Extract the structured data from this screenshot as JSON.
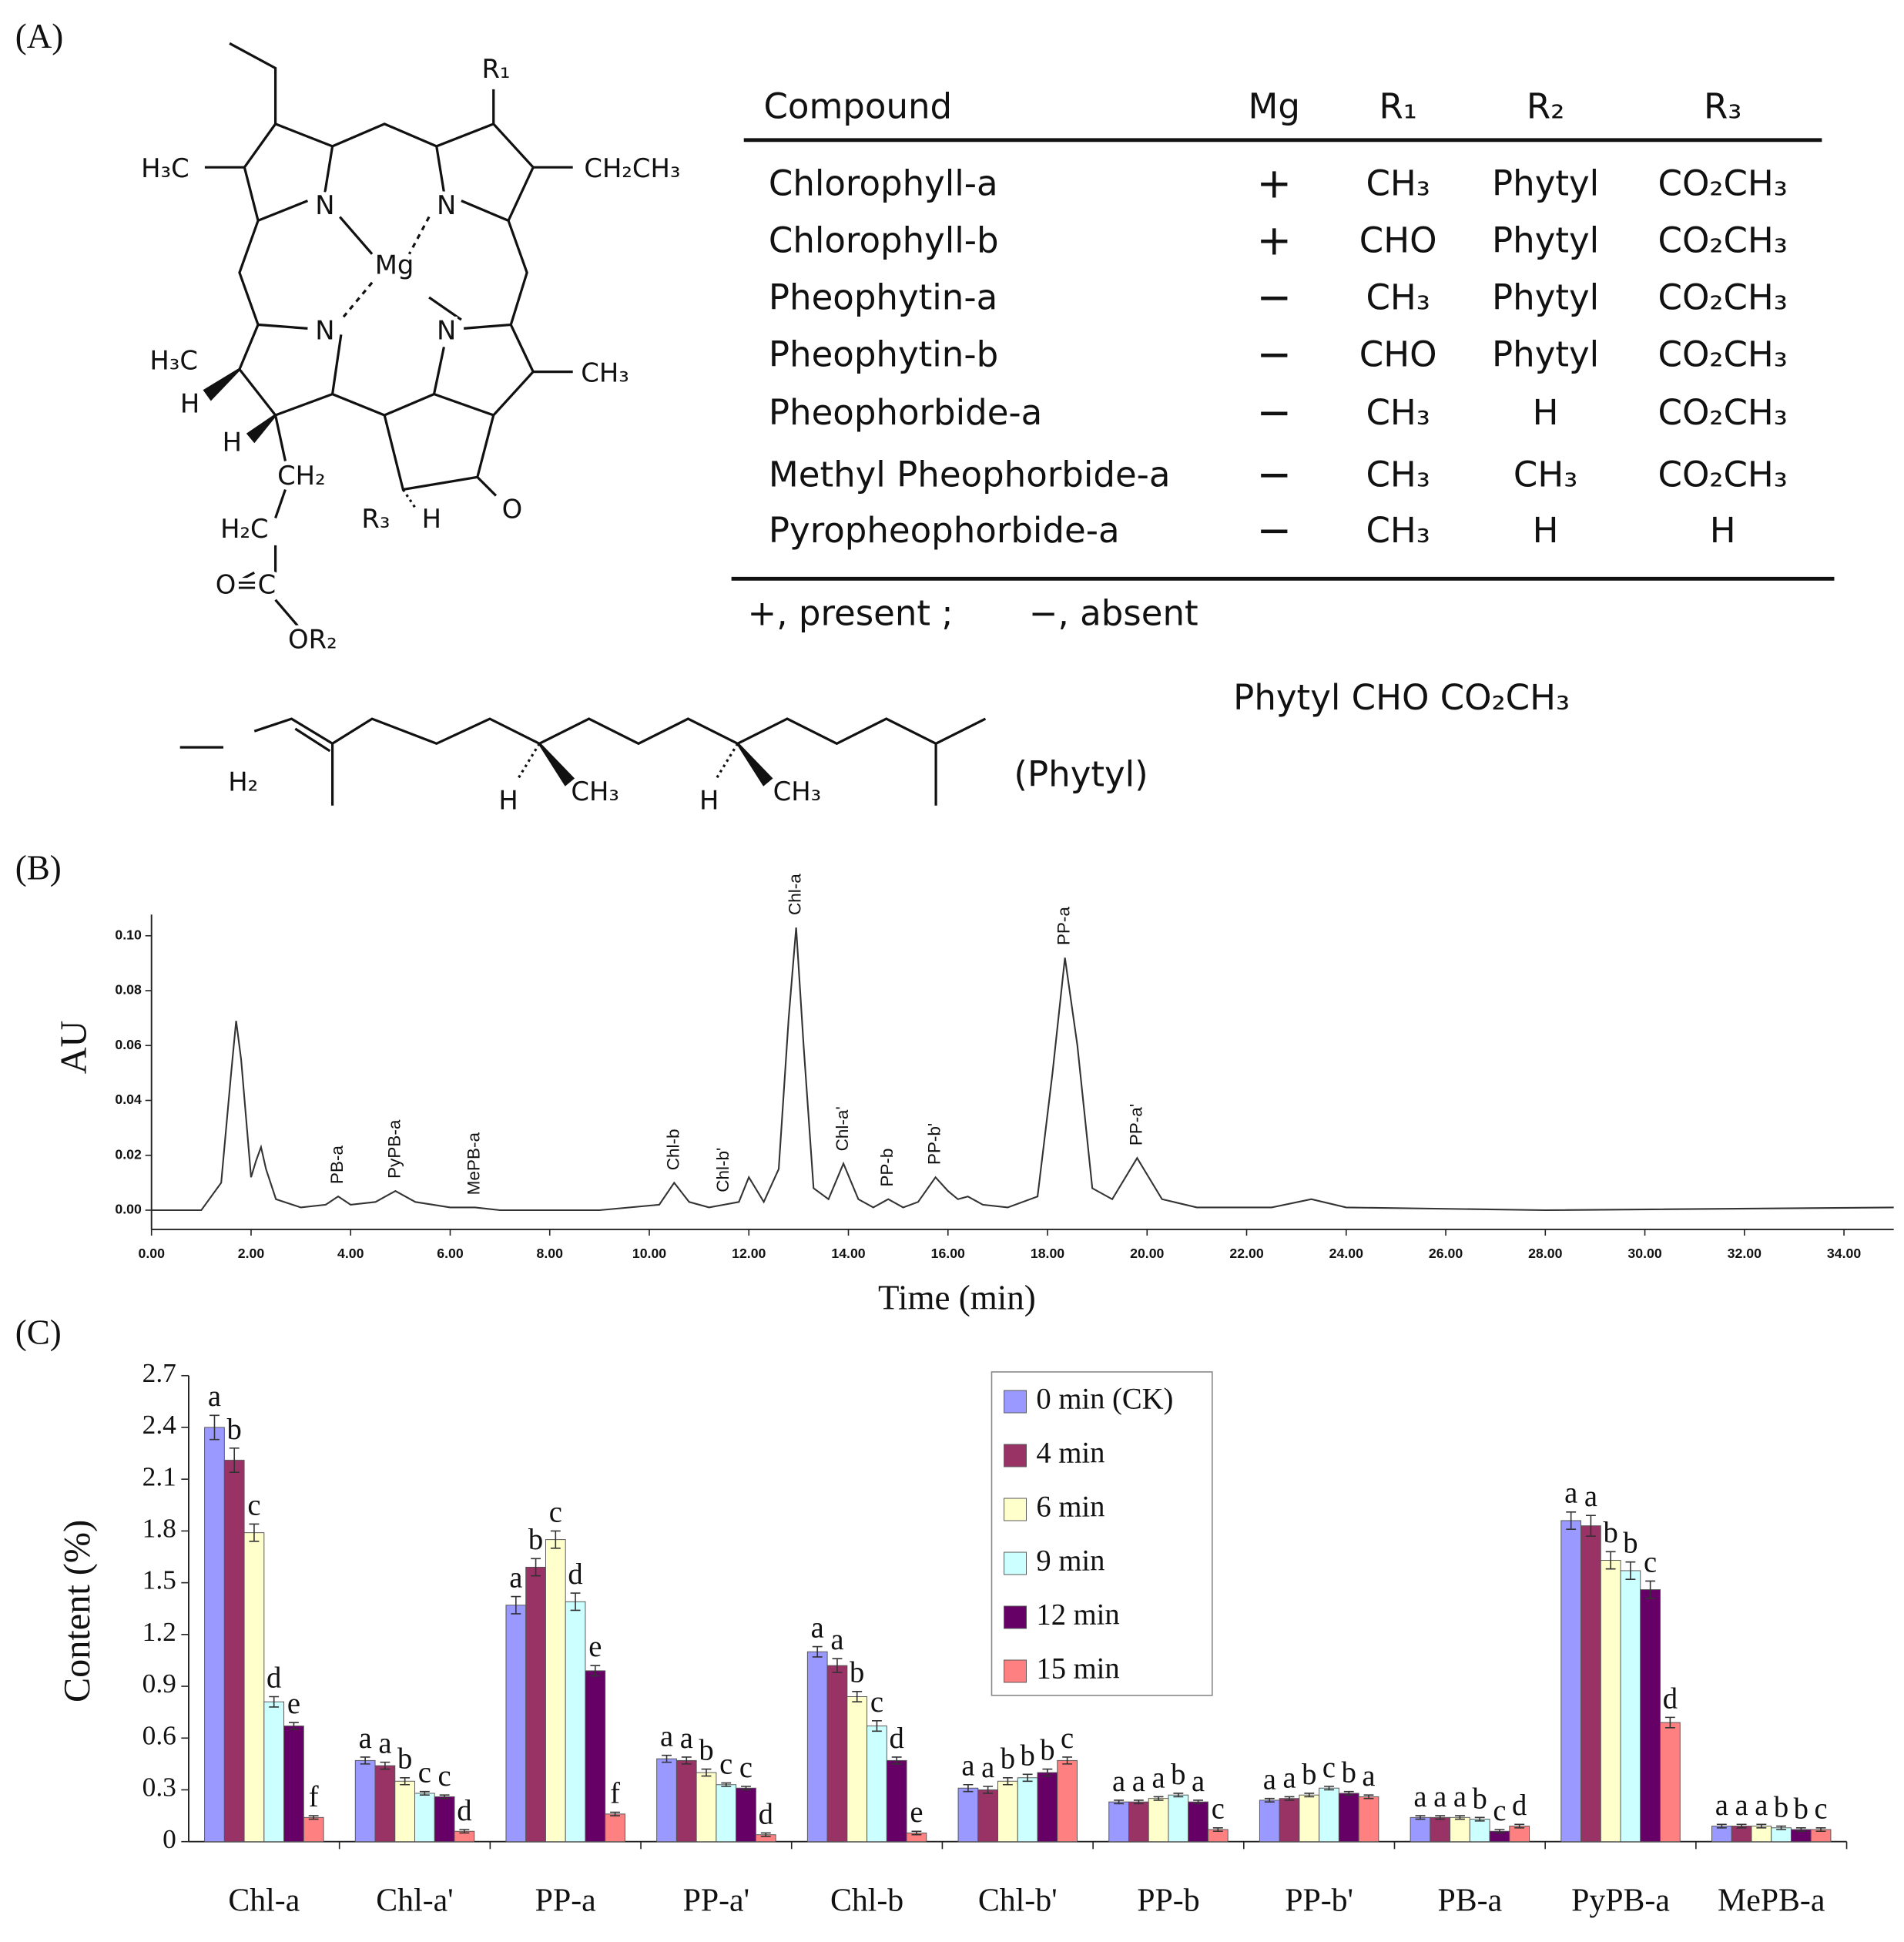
{
  "panel_labels": [
    "(A)",
    "(B)",
    "(C)"
  ],
  "structure": {
    "labels": [
      "R₁",
      "H₃C",
      "CH₂CH₃",
      "N",
      "N",
      "Mg",
      "N",
      "N",
      "H₃C",
      "CH₃",
      "H",
      "H",
      "CH₂",
      "R₃",
      "H",
      "O",
      "H₂C",
      "O=C",
      "OR₂"
    ],
    "phytyl_labels": [
      "H₂",
      "H",
      "CH₃",
      "H",
      "CH₃"
    ],
    "phytyl_caption": "(Phytyl)"
  },
  "table": {
    "header": [
      "Compound",
      "Mg",
      "R₁",
      "R₂",
      "R₃"
    ],
    "rows": [
      [
        "Chlorophyll-a",
        "+",
        "CH₃",
        "Phytyl",
        "CO₂CH₃"
      ],
      [
        "Chlorophyll-b",
        "+",
        "CHO",
        "Phytyl",
        "CO₂CH₃"
      ],
      [
        "Pheophytin-a",
        "−",
        "CH₃",
        "Phytyl",
        "CO₂CH₃"
      ],
      [
        "Pheophytin-b",
        "−",
        "CHO",
        "Phytyl",
        "CO₂CH₃"
      ],
      [
        "Pheophorbide-a",
        "−",
        "CH₃",
        "H",
        "CO₂CH₃"
      ],
      [
        "Methyl  Pheophorbide-a",
        "−",
        "CH₃",
        "CH₃",
        "CO₂CH₃"
      ],
      [
        "Pyropheophorbide-a",
        "−",
        "CH₃",
        "H",
        "H"
      ]
    ],
    "footnotes": [
      "+, present ;",
      "−, absent"
    ],
    "extra_line": "Phytyl  CHO  CO₂CH₃"
  },
  "chart_data": [
    {
      "type": "line",
      "xlabel": "Time (min)",
      "ylabel": "AU",
      "color": "#333333",
      "x": [
        0,
        1.0,
        1.4,
        1.6,
        1.7,
        1.8,
        2.0,
        2.1,
        2.2,
        2.3,
        2.5,
        3.0,
        3.5,
        3.75,
        4.0,
        4.5,
        4.9,
        5.3,
        6.0,
        6.5,
        7.0,
        9.0,
        10.2,
        10.5,
        10.8,
        11.2,
        11.5,
        11.8,
        12.0,
        12.3,
        12.6,
        12.8,
        12.95,
        13.1,
        13.3,
        13.6,
        13.9,
        14.2,
        14.5,
        14.8,
        15.1,
        15.4,
        15.75,
        16.0,
        16.2,
        16.4,
        16.7,
        17.2,
        17.8,
        18.1,
        18.35,
        18.6,
        18.9,
        19.3,
        19.8,
        20.3,
        21.0,
        22.5,
        23.3,
        24.0,
        28,
        35
      ],
      "values": [
        0.0,
        0.0,
        0.01,
        0.05,
        0.069,
        0.055,
        0.012,
        0.018,
        0.023,
        0.015,
        0.004,
        0.001,
        0.002,
        0.005,
        0.002,
        0.003,
        0.007,
        0.003,
        0.001,
        0.001,
        0.0,
        0.0,
        0.002,
        0.01,
        0.003,
        0.001,
        0.002,
        0.003,
        0.012,
        0.003,
        0.015,
        0.07,
        0.103,
        0.06,
        0.008,
        0.004,
        0.017,
        0.004,
        0.001,
        0.004,
        0.001,
        0.003,
        0.012,
        0.007,
        0.004,
        0.005,
        0.002,
        0.001,
        0.005,
        0.05,
        0.092,
        0.06,
        0.008,
        0.004,
        0.019,
        0.004,
        0.001,
        0.001,
        0.004,
        0.001,
        0.0,
        0.001
      ],
      "xlim": [
        0,
        35
      ],
      "ylim": [
        -0.007,
        0.105
      ],
      "xticks": [
        {
          "value": 0,
          "label": "0.00"
        },
        {
          "value": 2,
          "label": "2.00"
        },
        {
          "value": 4,
          "label": "4.00"
        },
        {
          "value": 6,
          "label": "6.00"
        },
        {
          "value": 8,
          "label": "8.00"
        },
        {
          "value": 10,
          "label": "10.00"
        },
        {
          "value": 12,
          "label": "12.00"
        },
        {
          "value": 14,
          "label": "14.00"
        },
        {
          "value": 16,
          "label": "16.00"
        },
        {
          "value": 18,
          "label": "18.00"
        },
        {
          "value": 20,
          "label": "20.00"
        },
        {
          "value": 22,
          "label": "22.00"
        },
        {
          "value": 24,
          "label": "24.00"
        },
        {
          "value": 26,
          "label": "26.00"
        },
        {
          "value": 28,
          "label": "28.00"
        },
        {
          "value": 30,
          "label": "30.00"
        },
        {
          "value": 32,
          "label": "32.00"
        },
        {
          "value": 34,
          "label": "34.00"
        }
      ],
      "yticks": [
        {
          "value": 0,
          "label": "0.00"
        },
        {
          "value": 0.02,
          "label": "0.02"
        },
        {
          "value": 0.04,
          "label": "0.04"
        },
        {
          "value": 0.06,
          "label": "0.06"
        },
        {
          "value": 0.08,
          "label": "0.08"
        },
        {
          "value": 0.1,
          "label": "0.10"
        }
      ],
      "annotations": [
        {
          "text": "PB-a",
          "x": 3.75,
          "y": 0.005
        },
        {
          "text": "PyPB-a",
          "x": 4.9,
          "y": 0.007
        },
        {
          "text": "MePB-a",
          "x": 6.5,
          "y": 0.001
        },
        {
          "text": "Chl-b",
          "x": 10.5,
          "y": 0.01
        },
        {
          "text": "Chl-b'",
          "x": 11.5,
          "y": 0.002
        },
        {
          "text": "Chl-a",
          "x": 12.95,
          "y": 0.103
        },
        {
          "text": "Chl-a'",
          "x": 13.9,
          "y": 0.017
        },
        {
          "text": "PP-b",
          "x": 14.8,
          "y": 0.004
        },
        {
          "text": "PP-b'",
          "x": 15.75,
          "y": 0.012
        },
        {
          "text": "PP-a",
          "x": 18.35,
          "y": 0.092
        },
        {
          "text": "PP-a'",
          "x": 19.8,
          "y": 0.019
        }
      ]
    },
    {
      "type": "bar",
      "ylabel": "Content (%)",
      "categories": [
        "Chl-a",
        "Chl-a'",
        "PP-a",
        "PP-a'",
        "Chl-b",
        "Chl-b'",
        "PP-b",
        "PP-b'",
        "PB-a",
        "PyPB-a",
        "MePB-a"
      ],
      "ylim": [
        0,
        2.7
      ],
      "yticks": [
        0,
        0.3,
        0.6,
        0.9,
        1.2,
        1.5,
        1.8,
        2.1,
        2.4,
        2.7
      ],
      "legend": "upper center",
      "series": [
        {
          "name": "0 min (CK)",
          "color": "#9999ff",
          "values": [
            2.4,
            0.47,
            1.37,
            0.48,
            1.1,
            0.31,
            0.23,
            0.24,
            0.14,
            1.86,
            0.09
          ],
          "errors": [
            0.07,
            0.02,
            0.05,
            0.02,
            0.03,
            0.02,
            0.01,
            0.01,
            0.01,
            0.05,
            0.01
          ],
          "letters": [
            "a",
            "a",
            "a",
            "a",
            "a",
            "a",
            "a",
            "a",
            "a",
            "a",
            "a"
          ]
        },
        {
          "name": "4 min",
          "color": "#993366",
          "values": [
            2.21,
            0.44,
            1.59,
            0.47,
            1.02,
            0.3,
            0.23,
            0.25,
            0.14,
            1.83,
            0.09
          ],
          "errors": [
            0.07,
            0.02,
            0.05,
            0.02,
            0.04,
            0.02,
            0.01,
            0.01,
            0.01,
            0.06,
            0.01
          ],
          "letters": [
            "b",
            "a",
            "b",
            "a",
            "a",
            "a",
            "a",
            "a",
            "a",
            "a",
            "a"
          ]
        },
        {
          "name": "6 min",
          "color": "#ffffcc",
          "values": [
            1.79,
            0.35,
            1.75,
            0.4,
            0.84,
            0.35,
            0.25,
            0.27,
            0.14,
            1.63,
            0.09
          ],
          "errors": [
            0.05,
            0.02,
            0.05,
            0.02,
            0.03,
            0.02,
            0.01,
            0.01,
            0.01,
            0.05,
            0.01
          ],
          "letters": [
            "c",
            "b",
            "c",
            "b",
            "b",
            "b",
            "a",
            "b",
            "a",
            "b",
            "a"
          ]
        },
        {
          "name": "9 min",
          "color": "#ccffff",
          "values": [
            0.81,
            0.28,
            1.39,
            0.33,
            0.67,
            0.37,
            0.27,
            0.31,
            0.13,
            1.57,
            0.08
          ],
          "errors": [
            0.03,
            0.01,
            0.05,
            0.01,
            0.03,
            0.02,
            0.01,
            0.01,
            0.01,
            0.05,
            0.01
          ],
          "letters": [
            "d",
            "c",
            "d",
            "c",
            "c",
            "b",
            "b",
            "c",
            "b",
            "b",
            "b"
          ]
        },
        {
          "name": "12 min",
          "color": "#660066",
          "values": [
            0.67,
            0.26,
            0.99,
            0.31,
            0.47,
            0.4,
            0.23,
            0.28,
            0.06,
            1.46,
            0.07
          ],
          "errors": [
            0.02,
            0.01,
            0.03,
            0.01,
            0.02,
            0.02,
            0.01,
            0.01,
            0.01,
            0.05,
            0.01
          ],
          "letters": [
            "e",
            "c",
            "e",
            "c",
            "d",
            "b",
            "a",
            "b",
            "c",
            "c",
            "b"
          ]
        },
        {
          "name": "15 min",
          "color": "#ff8080",
          "values": [
            0.14,
            0.06,
            0.16,
            0.04,
            0.05,
            0.47,
            0.07,
            0.26,
            0.09,
            0.69,
            0.07
          ],
          "errors": [
            0.01,
            0.01,
            0.01,
            0.01,
            0.01,
            0.02,
            0.01,
            0.01,
            0.01,
            0.03,
            0.01
          ],
          "letters": [
            "f",
            "d",
            "f",
            "d",
            "e",
            "c",
            "c",
            "a",
            "d",
            "d",
            "c"
          ]
        }
      ]
    }
  ]
}
